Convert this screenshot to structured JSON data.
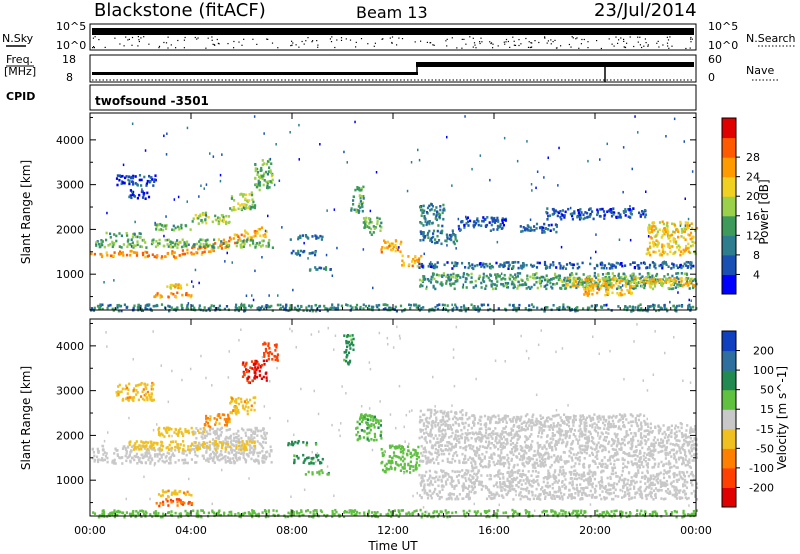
{
  "header": {
    "station": "Blackstone (fitACF)",
    "beam": "Beam 13",
    "date": "23/Jul/2014"
  },
  "top_panels": {
    "nsky_label": "N.Sky",
    "nsky_ticks": [
      "10^5",
      "10^0"
    ],
    "nsearch_label": "N.Search",
    "nsearch_ticks": [
      "10^5",
      "10^0"
    ],
    "freq_label": "Freq.",
    "freq_unit": "[MHz]",
    "freq_ticks": [
      "18",
      "8"
    ],
    "nave_label": "Nave",
    "nave_ticks": [
      "60",
      "0"
    ],
    "cpid_label": "CPID",
    "cpid_value": "twofsound -3501"
  },
  "chart_data": [
    {
      "type": "heatmap",
      "panel": "power",
      "ylabel": "Slant Range [km]",
      "yticks": [
        1000,
        2000,
        3000,
        4000
      ],
      "ylim": [
        200,
        4600
      ],
      "xlim_hours": [
        0,
        24
      ],
      "colorbar_label": "Power [dB]",
      "colorbar_ticks": [
        4,
        8,
        12,
        16,
        20,
        24,
        28
      ],
      "colorbar_colors": [
        "#0000ff",
        "#1a4fb4",
        "#2e7d8f",
        "#3d9a5a",
        "#9ad04a",
        "#f0d020",
        "#ff9a00",
        "#ff5a00",
        "#e00000"
      ],
      "bands": [
        {
          "t0": 0.0,
          "t1": 0.5,
          "r0": 1400,
          "r1": 1500,
          "level": 22
        },
        {
          "t0": 0.5,
          "t1": 1.0,
          "r0": 1420,
          "r1": 1530,
          "level": 24
        },
        {
          "t0": 1.0,
          "t1": 1.5,
          "r0": 1440,
          "r1": 1560,
          "level": 24
        },
        {
          "t0": 1.5,
          "t1": 2.0,
          "r0": 1430,
          "r1": 1560,
          "level": 25
        },
        {
          "t0": 2.0,
          "t1": 2.5,
          "r0": 1410,
          "r1": 1540,
          "level": 24
        },
        {
          "t0": 2.5,
          "t1": 3.0,
          "r0": 1380,
          "r1": 1520,
          "level": 24
        },
        {
          "t0": 3.0,
          "t1": 3.5,
          "r0": 1390,
          "r1": 1540,
          "level": 24
        },
        {
          "t0": 3.5,
          "t1": 4.0,
          "r0": 1420,
          "r1": 1580,
          "level": 24
        },
        {
          "t0": 4.0,
          "t1": 4.5,
          "r0": 1460,
          "r1": 1640,
          "level": 24
        },
        {
          "t0": 4.5,
          "t1": 5.0,
          "r0": 1530,
          "r1": 1720,
          "level": 24
        },
        {
          "t0": 5.0,
          "t1": 5.5,
          "r0": 1600,
          "r1": 1820,
          "level": 24
        },
        {
          "t0": 5.5,
          "t1": 6.0,
          "r0": 1680,
          "r1": 1910,
          "level": 23
        },
        {
          "t0": 6.0,
          "t1": 6.5,
          "r0": 1770,
          "r1": 2000,
          "level": 22
        },
        {
          "t0": 6.5,
          "t1": 7.0,
          "r0": 1830,
          "r1": 2070,
          "level": 22
        },
        {
          "t0": 0.2,
          "t1": 7.2,
          "r0": 1620,
          "r1": 1800,
          "level": 14
        },
        {
          "t0": 0.5,
          "t1": 2.0,
          "r0": 1850,
          "r1": 1950,
          "level": 12
        },
        {
          "t0": 2.5,
          "t1": 4.0,
          "r0": 2000,
          "r1": 2150,
          "level": 14
        },
        {
          "t0": 4.0,
          "t1": 5.5,
          "r0": 2150,
          "r1": 2400,
          "level": 16
        },
        {
          "t0": 5.5,
          "t1": 6.5,
          "r0": 2450,
          "r1": 2850,
          "level": 16
        },
        {
          "t0": 6.5,
          "t1": 7.2,
          "r0": 2900,
          "r1": 3600,
          "level": 14
        },
        {
          "t0": 1.0,
          "t1": 2.6,
          "r0": 3000,
          "r1": 3250,
          "level": 5
        },
        {
          "t0": 1.5,
          "t1": 2.3,
          "r0": 2700,
          "r1": 2900,
          "level": 5
        },
        {
          "t0": 7.8,
          "t1": 9.2,
          "r0": 1800,
          "r1": 1900,
          "level": 8
        },
        {
          "t0": 7.8,
          "t1": 9.2,
          "r0": 1450,
          "r1": 1550,
          "level": 8
        },
        {
          "t0": 8.5,
          "t1": 9.5,
          "r0": 1100,
          "r1": 1200,
          "level": 8
        },
        {
          "t0": 10.3,
          "t1": 10.8,
          "r0": 2400,
          "r1": 3000,
          "level": 12
        },
        {
          "t0": 10.8,
          "t1": 11.5,
          "r0": 1900,
          "r1": 2300,
          "level": 14
        },
        {
          "t0": 11.5,
          "t1": 12.3,
          "r0": 1500,
          "r1": 1800,
          "level": 22
        },
        {
          "t0": 12.3,
          "t1": 13.1,
          "r0": 1200,
          "r1": 1450,
          "level": 22
        },
        {
          "t0": 13.0,
          "t1": 14.0,
          "r0": 2100,
          "r1": 2600,
          "level": 10
        },
        {
          "t0": 13.0,
          "t1": 14.5,
          "r0": 1700,
          "r1": 2000,
          "level": 9
        },
        {
          "t0": 13.0,
          "t1": 24.0,
          "r0": 1150,
          "r1": 1300,
          "level": 7
        },
        {
          "t0": 13.0,
          "t1": 24.0,
          "r0": 700,
          "r1": 1050,
          "level": 12
        },
        {
          "t0": 18.5,
          "t1": 24.0,
          "r0": 750,
          "r1": 950,
          "level": 20
        },
        {
          "t0": 19.5,
          "t1": 21.5,
          "r0": 550,
          "r1": 750,
          "level": 22
        },
        {
          "t0": 14.5,
          "t1": 16.5,
          "r0": 2000,
          "r1": 2300,
          "level": 6
        },
        {
          "t0": 17.0,
          "t1": 18.5,
          "r0": 1950,
          "r1": 2150,
          "level": 6
        },
        {
          "t0": 18.0,
          "t1": 22.0,
          "r0": 2250,
          "r1": 2500,
          "level": 6
        },
        {
          "t0": 22.0,
          "t1": 24.0,
          "r0": 1450,
          "r1": 2200,
          "level": 20
        },
        {
          "t0": 2.5,
          "t1": 4.0,
          "r0": 500,
          "r1": 620,
          "level": 24
        },
        {
          "t0": 2.5,
          "t1": 4.0,
          "r0": 700,
          "r1": 800,
          "level": 20
        },
        {
          "t0": 0.0,
          "t1": 24.0,
          "r0": 200,
          "r1": 350,
          "level": 10
        }
      ]
    },
    {
      "type": "heatmap",
      "panel": "velocity",
      "ylabel": "Slant Range [km]",
      "xlabel": "Time UT",
      "xticks": [
        "00:00",
        "04:00",
        "08:00",
        "12:00",
        "16:00",
        "20:00",
        "00:00"
      ],
      "yticks": [
        1000,
        2000,
        3000,
        4000
      ],
      "ylim": [
        200,
        4600
      ],
      "xlim_hours": [
        0,
        24
      ],
      "colorbar_label": "Velocity [m s^-1]",
      "colorbar_ticks": [
        200,
        100,
        50,
        15,
        -15,
        -50,
        -100,
        -200
      ],
      "colorbar_colors": [
        "#1040c0",
        "#2e6fa0",
        "#208a50",
        "#60c040",
        "#c8c8c8",
        "#f0c020",
        "#ff8000",
        "#ff4000",
        "#e00000"
      ],
      "bands": [
        {
          "t0": 0.0,
          "t1": 7.2,
          "r0": 1400,
          "r1": 1800,
          "velocity": 0
        },
        {
          "t0": 4.0,
          "t1": 7.0,
          "r0": 1800,
          "r1": 2200,
          "velocity": 0
        },
        {
          "t0": 1.5,
          "t1": 6.5,
          "r0": 1700,
          "r1": 1900,
          "velocity": -30
        },
        {
          "t0": 2.5,
          "t1": 4.5,
          "r0": 2000,
          "r1": 2200,
          "velocity": -30
        },
        {
          "t0": 4.5,
          "t1": 5.5,
          "r0": 2200,
          "r1": 2500,
          "velocity": -60
        },
        {
          "t0": 5.5,
          "t1": 6.5,
          "r0": 2500,
          "r1": 2900,
          "velocity": -40
        },
        {
          "t0": 6.0,
          "t1": 7.0,
          "r0": 3200,
          "r1": 3700,
          "velocity": -200
        },
        {
          "t0": 6.8,
          "t1": 7.4,
          "r0": 3700,
          "r1": 4100,
          "velocity": -120
        },
        {
          "t0": 1.0,
          "t1": 2.5,
          "r0": 2800,
          "r1": 3200,
          "velocity": -40
        },
        {
          "t0": 2.5,
          "t1": 4.0,
          "r0": 650,
          "r1": 800,
          "velocity": -40
        },
        {
          "t0": 2.5,
          "t1": 4.0,
          "r0": 450,
          "r1": 600,
          "velocity": -100
        },
        {
          "t0": 0.0,
          "t1": 24.0,
          "r0": 200,
          "r1": 360,
          "velocity": 30
        },
        {
          "t0": 7.8,
          "t1": 9.0,
          "r0": 1800,
          "r1": 1900,
          "velocity": 50
        },
        {
          "t0": 8.0,
          "t1": 9.2,
          "r0": 1400,
          "r1": 1600,
          "velocity": 60
        },
        {
          "t0": 8.5,
          "t1": 9.5,
          "r0": 1150,
          "r1": 1250,
          "velocity": 40
        },
        {
          "t0": 10.5,
          "t1": 11.5,
          "r0": 1900,
          "r1": 2500,
          "velocity": 40
        },
        {
          "t0": 11.5,
          "t1": 13.0,
          "r0": 1200,
          "r1": 1800,
          "velocity": 30
        },
        {
          "t0": 13.0,
          "t1": 24.0,
          "r0": 600,
          "r1": 1250,
          "velocity": 0
        },
        {
          "t0": 13.0,
          "t1": 15.0,
          "r0": 1400,
          "r1": 2600,
          "velocity": 0
        },
        {
          "t0": 15.0,
          "t1": 22.0,
          "r0": 1300,
          "r1": 2500,
          "velocity": 0
        },
        {
          "t0": 22.0,
          "t1": 24.0,
          "r0": 1300,
          "r1": 2300,
          "velocity": 0
        },
        {
          "t0": 10.0,
          "t1": 10.4,
          "r0": 3600,
          "r1": 4300,
          "velocity": 60
        }
      ]
    }
  ]
}
